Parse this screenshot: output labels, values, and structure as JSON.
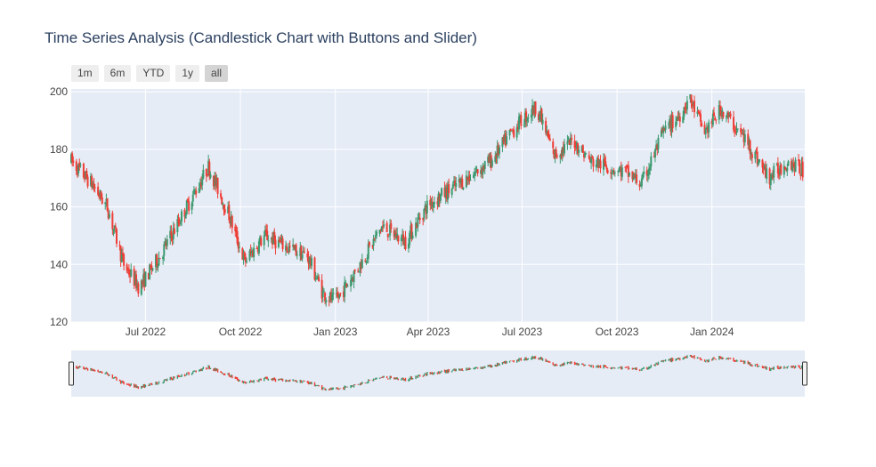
{
  "title": "Time Series Analysis (Candlestick Chart with Buttons and Slider)",
  "range_selector": {
    "buttons": [
      {
        "label": "1m",
        "active": false
      },
      {
        "label": "6m",
        "active": false
      },
      {
        "label": "YTD",
        "active": false
      },
      {
        "label": "1y",
        "active": false
      },
      {
        "label": "all",
        "active": true
      }
    ]
  },
  "colors": {
    "plot_background": "#e5ecf6",
    "grid": "#ffffff",
    "increasing": "#3d9970",
    "decreasing": "#ef3e36",
    "title_text": "#2a3f5f"
  },
  "chart_data": {
    "type": "candlestick",
    "title": "Time Series Analysis (Candlestick Chart with Buttons and Slider)",
    "xlabel": "",
    "ylabel": "",
    "x_range": [
      "2022-04-20",
      "2024-03-31"
    ],
    "ylim": [
      120,
      201
    ],
    "x_ticks": [
      {
        "date": "2022-07-01",
        "label": "Jul 2022"
      },
      {
        "date": "2022-10-01",
        "label": "Oct 2022"
      },
      {
        "date": "2023-01-01",
        "label": "Jan 2023"
      },
      {
        "date": "2023-04-01",
        "label": "Apr 2023"
      },
      {
        "date": "2023-07-01",
        "label": "Jul 2023"
      },
      {
        "date": "2023-10-01",
        "label": "Oct 2023"
      },
      {
        "date": "2024-01-01",
        "label": "Jan 2024"
      }
    ],
    "y_ticks": [
      120,
      140,
      160,
      180,
      200
    ],
    "grid": true,
    "rangeslider": true,
    "close_anchors": [
      {
        "date": "2022-04-20",
        "close": 176
      },
      {
        "date": "2022-05-10",
        "close": 168
      },
      {
        "date": "2022-05-25",
        "close": 160
      },
      {
        "date": "2022-06-10",
        "close": 140
      },
      {
        "date": "2022-06-25",
        "close": 132
      },
      {
        "date": "2022-07-15",
        "close": 143
      },
      {
        "date": "2022-08-10",
        "close": 160
      },
      {
        "date": "2022-08-31",
        "close": 174
      },
      {
        "date": "2022-09-20",
        "close": 157
      },
      {
        "date": "2022-10-05",
        "close": 141
      },
      {
        "date": "2022-10-25",
        "close": 150
      },
      {
        "date": "2022-11-15",
        "close": 146
      },
      {
        "date": "2022-12-05",
        "close": 143
      },
      {
        "date": "2022-12-20",
        "close": 130
      },
      {
        "date": "2023-01-01",
        "close": 127
      },
      {
        "date": "2023-01-25",
        "close": 140
      },
      {
        "date": "2023-02-15",
        "close": 153
      },
      {
        "date": "2023-03-10",
        "close": 148
      },
      {
        "date": "2023-04-01",
        "close": 161
      },
      {
        "date": "2023-05-01",
        "close": 168
      },
      {
        "date": "2023-06-01",
        "close": 176
      },
      {
        "date": "2023-06-25",
        "close": 188
      },
      {
        "date": "2023-07-15",
        "close": 195
      },
      {
        "date": "2023-08-01",
        "close": 178
      },
      {
        "date": "2023-08-20",
        "close": 183
      },
      {
        "date": "2023-09-05",
        "close": 176
      },
      {
        "date": "2023-10-10",
        "close": 172
      },
      {
        "date": "2023-10-25",
        "close": 168
      },
      {
        "date": "2023-11-15",
        "close": 186
      },
      {
        "date": "2023-12-01",
        "close": 192
      },
      {
        "date": "2023-12-10",
        "close": 198
      },
      {
        "date": "2023-12-25",
        "close": 186
      },
      {
        "date": "2024-01-10",
        "close": 194
      },
      {
        "date": "2024-02-05",
        "close": 182
      },
      {
        "date": "2024-02-25",
        "close": 170
      },
      {
        "date": "2024-03-15",
        "close": 176
      },
      {
        "date": "2024-03-31",
        "close": 172
      }
    ]
  }
}
